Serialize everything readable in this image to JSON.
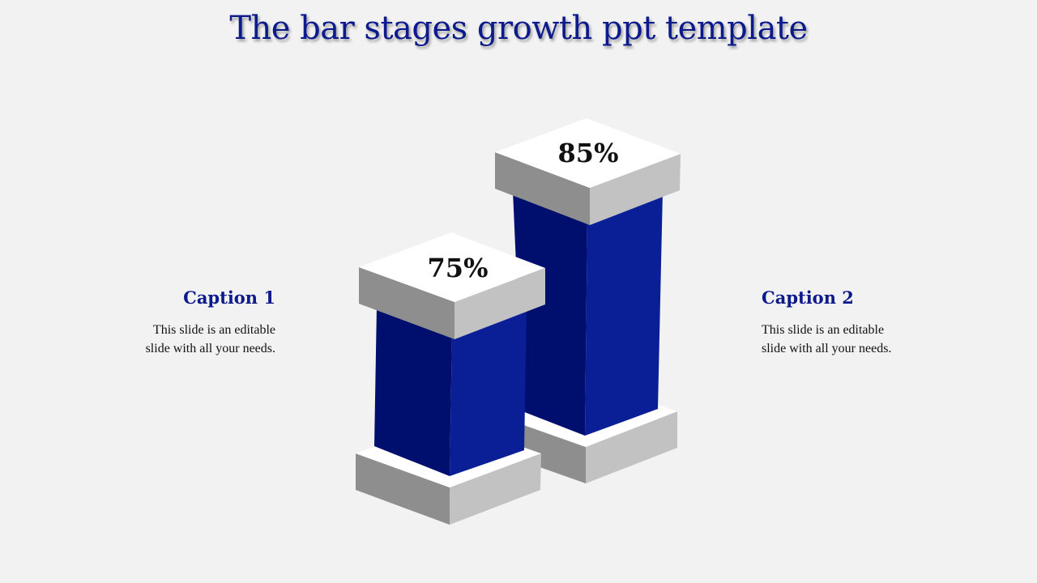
{
  "slide": {
    "title": "The bar stages growth ppt template"
  },
  "captions": [
    {
      "title": "Caption 1",
      "text_line1": "This slide is an editable",
      "text_line2": "slide with all your needs."
    },
    {
      "title": "Caption 2",
      "text_line1": "This slide is an editable",
      "text_line2": "slide with all your needs."
    }
  ],
  "bars": [
    {
      "label": "75%",
      "value": 75
    },
    {
      "label": "85%",
      "value": 85
    }
  ],
  "colors": {
    "title": "#0c1a8c",
    "bar_dark": "#000f6e",
    "bar_light": "#0a1f96",
    "cap_top": "#ffffff",
    "cap_left": "#8e8e8e",
    "cap_right": "#c2c2c2",
    "background": "#f2f2f2"
  }
}
